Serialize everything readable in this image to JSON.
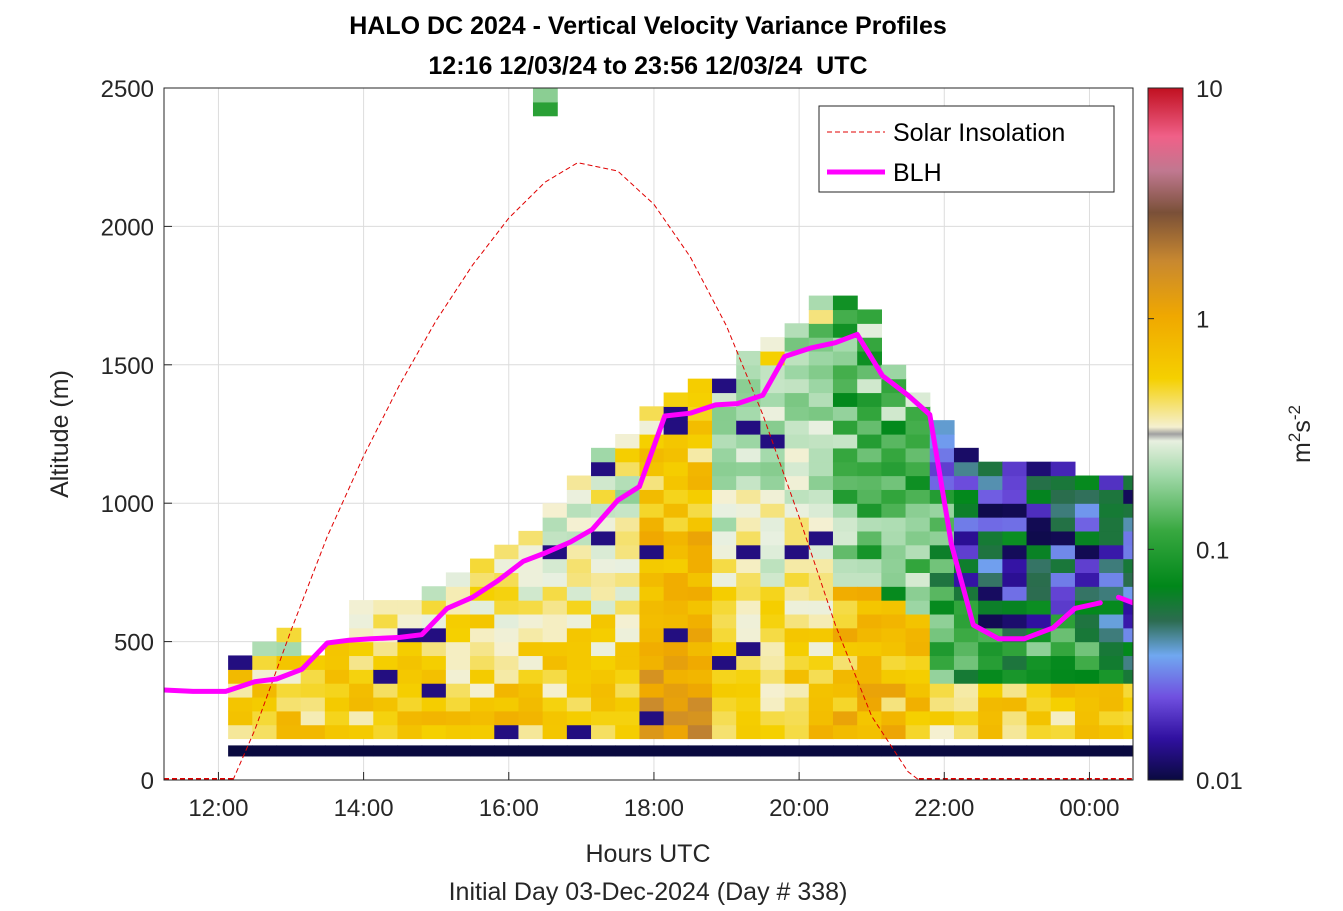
{
  "chart_data": {
    "type": "heatmap",
    "title": "HALO DC 2024 - Vertical Velocity Variance Profiles",
    "subtitle": "12:16 12/03/24 to 23:56 12/03/24  UTC",
    "xlabel": "Hours UTC",
    "ylabel": "Altitude (m)",
    "footer": "Initial Day 03-Dec-2024 (Day # 338)",
    "xlim_hours": [
      11.25,
      24.6
    ],
    "ylim": [
      0,
      2500
    ],
    "x_ticks": [
      {
        "value": 12,
        "label": "12:00"
      },
      {
        "value": 14,
        "label": "14:00"
      },
      {
        "value": 16,
        "label": "16:00"
      },
      {
        "value": 18,
        "label": "18:00"
      },
      {
        "value": 20,
        "label": "20:00"
      },
      {
        "value": 22,
        "label": "22:00"
      },
      {
        "value": 24,
        "label": "00:00"
      }
    ],
    "y_ticks": [
      {
        "value": 0,
        "label": "0"
      },
      {
        "value": 500,
        "label": "500"
      },
      {
        "value": 1000,
        "label": "1000"
      },
      {
        "value": 1500,
        "label": "1500"
      },
      {
        "value": 2000,
        "label": "2000"
      },
      {
        "value": 2500,
        "label": "2500"
      }
    ],
    "grid": true,
    "legend_position": "top-right",
    "colorbar": {
      "label_base": "m",
      "label_sup1": "2",
      "label_mid": "s",
      "label_sup2": "-2",
      "scale": "log",
      "range": [
        0.01,
        10
      ],
      "ticks": [
        {
          "value": 10,
          "label": "10"
        },
        {
          "value": 1,
          "label": "1"
        },
        {
          "value": 0.1,
          "label": "0.1"
        },
        {
          "value": 0.01,
          "label": "0.01"
        }
      ]
    },
    "series": [
      {
        "name": "Solar Insolation",
        "style": "dashed",
        "color": "#e00000",
        "x": [
          12.2,
          12.5,
          13.0,
          13.5,
          14.0,
          14.5,
          15.0,
          15.5,
          16.0,
          16.5,
          16.95,
          17.5,
          18.0,
          18.5,
          19.0,
          19.5,
          20.0,
          20.5,
          21.0,
          21.5,
          21.65
        ],
        "y": [
          0,
          180,
          540,
          880,
          1170,
          1430,
          1660,
          1860,
          2030,
          2160,
          2230,
          2200,
          2080,
          1890,
          1640,
          1320,
          950,
          560,
          230,
          30,
          0
        ]
      },
      {
        "name": "BLH",
        "style": "solid",
        "color": "#ff00ff",
        "x": [
          11.25,
          11.65,
          12.1,
          12.5,
          12.8,
          13.15,
          13.5,
          13.8,
          14.1,
          14.5,
          14.8,
          15.15,
          15.5,
          15.85,
          16.2,
          16.5,
          16.85,
          17.15,
          17.5,
          17.8,
          18.15,
          18.5,
          18.85,
          19.15,
          19.5,
          19.8,
          20.15,
          20.5,
          20.8,
          21.15,
          21.5,
          21.8,
          22.1,
          22.4,
          22.75,
          23.1,
          23.5,
          23.8,
          24.15
        ],
        "y": [
          325,
          320,
          320,
          355,
          365,
          400,
          495,
          505,
          510,
          515,
          525,
          620,
          660,
          720,
          790,
          820,
          860,
          905,
          1010,
          1060,
          1315,
          1325,
          1355,
          1360,
          1390,
          1530,
          1560,
          1580,
          1610,
          1460,
          1390,
          1320,
          850,
          560,
          510,
          510,
          550,
          620,
          640
        ]
      },
      {
        "name": "",
        "style": "solid",
        "color": "#ff00ff",
        "x": [
          24.4,
          24.6
        ],
        "y": [
          660,
          640
        ]
      }
    ],
    "heatmap_encoding": "log10 of variance (m^2 s^-2); heatmap.x = time in hours UTC, heatmap.y = altitude in m, heatmap.v = log10(variance)",
    "heatmap": {
      "x": [],
      "y": [],
      "v": []
    }
  },
  "colors": {
    "blh": "#ff00ff",
    "solar": "#e00000",
    "grid": "#dcdcdc",
    "axis": "#262626",
    "legend_border": "#262626"
  },
  "legend": {
    "entries": [
      {
        "label": "Solar Insolation"
      },
      {
        "label": "BLH"
      }
    ]
  }
}
